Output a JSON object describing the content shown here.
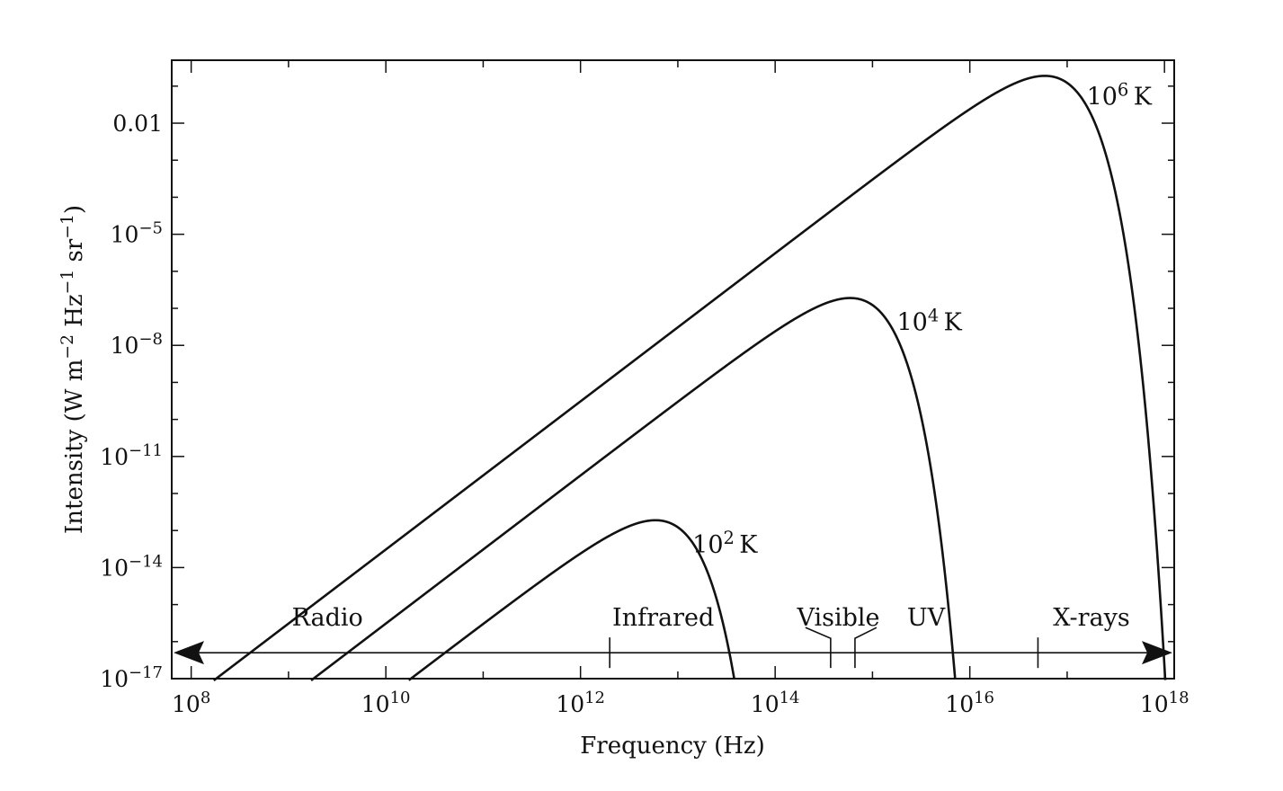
{
  "chart_data": {
    "type": "line",
    "xlabel": "Frequency (Hz)",
    "ylabel": "Intensity (W m−2 Hz−1 sr−1)",
    "ylabel_parts": [
      {
        "t": "Intensity (W m",
        "sup": false
      },
      {
        "t": "−2",
        "sup": true
      },
      {
        "t": " Hz",
        "sup": false
      },
      {
        "t": "−1",
        "sup": true
      },
      {
        "t": " sr",
        "sup": false
      },
      {
        "t": "−1",
        "sup": true
      },
      {
        "t": ")",
        "sup": false
      }
    ],
    "x_scale": "log",
    "y_scale": "log",
    "xlim_log10": [
      7.8,
      18.1
    ],
    "ylim_log10": [
      -17,
      -0.3
    ],
    "x_ticks": [
      {
        "value_log10": 8,
        "base": "10",
        "exp": "8"
      },
      {
        "value_log10": 10,
        "base": "10",
        "exp": "10"
      },
      {
        "value_log10": 12,
        "base": "10",
        "exp": "12"
      },
      {
        "value_log10": 14,
        "base": "10",
        "exp": "14"
      },
      {
        "value_log10": 16,
        "base": "10",
        "exp": "16"
      },
      {
        "value_log10": 18,
        "base": "10",
        "exp": "18"
      }
    ],
    "y_ticks": [
      {
        "value_log10": -2,
        "base": "0.01",
        "exp": ""
      },
      {
        "value_log10": -5,
        "base": "10",
        "exp": "−5"
      },
      {
        "value_log10": -8,
        "base": "10",
        "exp": "−8"
      },
      {
        "value_log10": -11,
        "base": "10",
        "exp": "−11"
      },
      {
        "value_log10": -14,
        "base": "10",
        "exp": "−14"
      },
      {
        "value_log10": -17,
        "base": "10",
        "exp": "−17"
      }
    ],
    "grid": false,
    "series": [
      {
        "temperature_K": 100,
        "label_base": "10",
        "label_exp": "2",
        "label_unit": "K",
        "label_at": {
          "x_log10": 13.15,
          "y_log10": -13.6
        }
      },
      {
        "temperature_K": 10000,
        "label_base": "10",
        "label_exp": "4",
        "label_unit": "K",
        "label_at": {
          "x_log10": 15.25,
          "y_log10": -7.6
        }
      },
      {
        "temperature_K": 1000000,
        "label_base": "10",
        "label_exp": "6",
        "label_unit": "K",
        "label_at": {
          "x_log10": 17.2,
          "y_log10": -1.5
        }
      }
    ],
    "spectrum": {
      "bands": [
        {
          "label": "Radio",
          "at_log10": 9.4
        },
        {
          "label": "Infrared",
          "at_log10": 12.85
        },
        {
          "label": "Visible",
          "at_log10": 14.65
        },
        {
          "label": "UV",
          "at_log10": 15.55
        },
        {
          "label": "X-rays",
          "at_log10": 17.25
        }
      ],
      "boundaries_log10": [
        12.3,
        14.57,
        14.82,
        16.7
      ],
      "arrow_y_log10": -16.3
    }
  }
}
